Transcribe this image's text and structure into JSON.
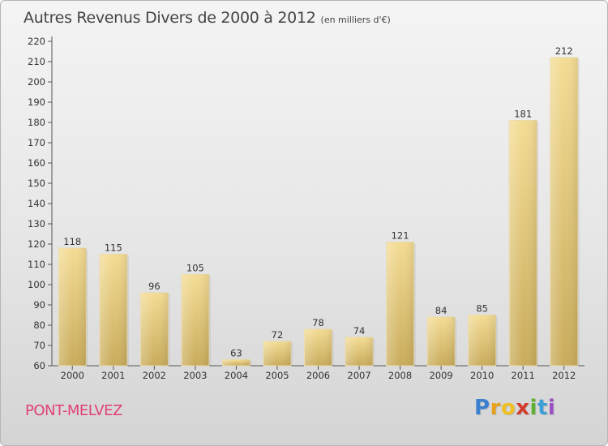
{
  "chart_data": {
    "type": "bar",
    "title": "Autres Revenus Divers de 2000 à 2012",
    "subtitle": "(en milliers d'€)",
    "categories": [
      "2000",
      "2001",
      "2002",
      "2003",
      "2004",
      "2005",
      "2006",
      "2007",
      "2008",
      "2009",
      "2010",
      "2011",
      "2012"
    ],
    "values": [
      118,
      115,
      96,
      105,
      63,
      72,
      78,
      74,
      121,
      84,
      85,
      181,
      212
    ],
    "ylim": [
      60,
      220
    ],
    "yticks": [
      60,
      70,
      80,
      90,
      100,
      110,
      120,
      130,
      140,
      150,
      160,
      170,
      180,
      190,
      200,
      210,
      220
    ],
    "grid": false,
    "xlabel": "",
    "ylabel": "",
    "bar_color": "#e5cd84"
  },
  "footer": {
    "city": "PONT-MELVEZ",
    "city_color": "#e0407a"
  },
  "logo": {
    "letters": [
      "P",
      "r",
      "o",
      "x",
      "i",
      "t",
      "i"
    ],
    "colors": [
      "#3b7fd0",
      "#e8a21a",
      "#f0c020",
      "#d33a2c",
      "#5fb030",
      "#3b9fd8",
      "#9a4fc4"
    ]
  }
}
